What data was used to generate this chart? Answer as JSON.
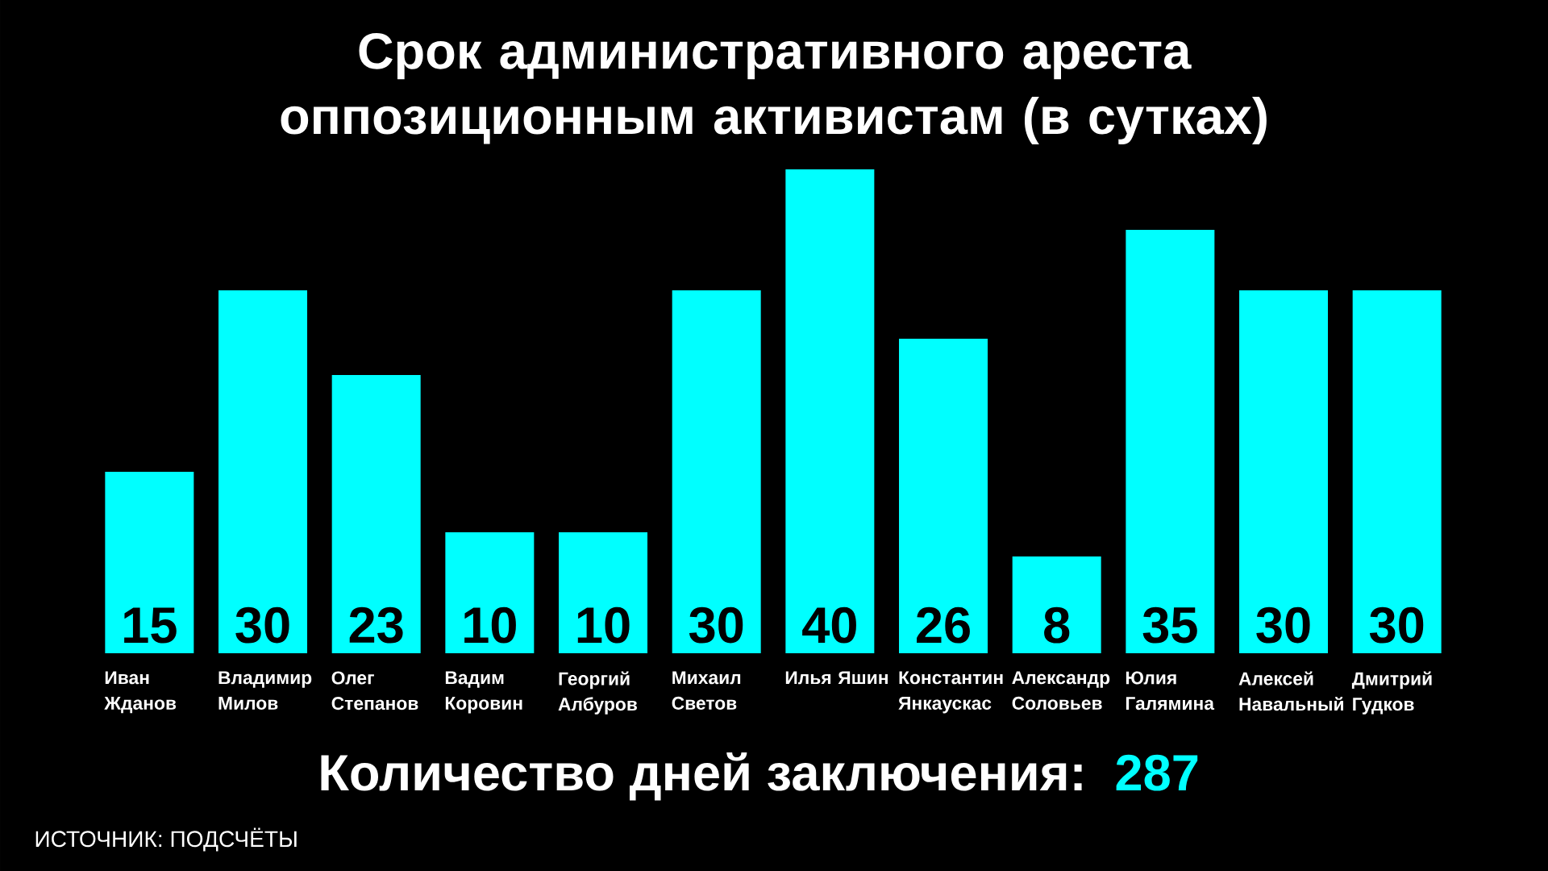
{
  "chart_data": {
    "type": "bar",
    "title": "Срок административного ареста оппозиционным активистам (в сутках)",
    "categories": [
      "Иван Жданов",
      "Владимир Милов",
      "Олег Степанов",
      "Вадим Коровин",
      "Георгий Албуров",
      "Михаил Светов",
      "Илья Яшин",
      "Константин Янкаускас",
      "Александр Соловьев",
      "Юлия Галямина",
      "Алексей Навальный",
      "Дмитрий Гудков"
    ],
    "values": [
      15,
      30,
      23,
      10,
      10,
      30,
      40,
      26,
      8,
      35,
      30,
      30
    ],
    "color": "#00ffff",
    "data_labels": true,
    "annotations": [
      "Количество дней заключения:",
      "287",
      "ИСТОЧНИК: ПОДСЧЁТЫ"
    ]
  }
}
